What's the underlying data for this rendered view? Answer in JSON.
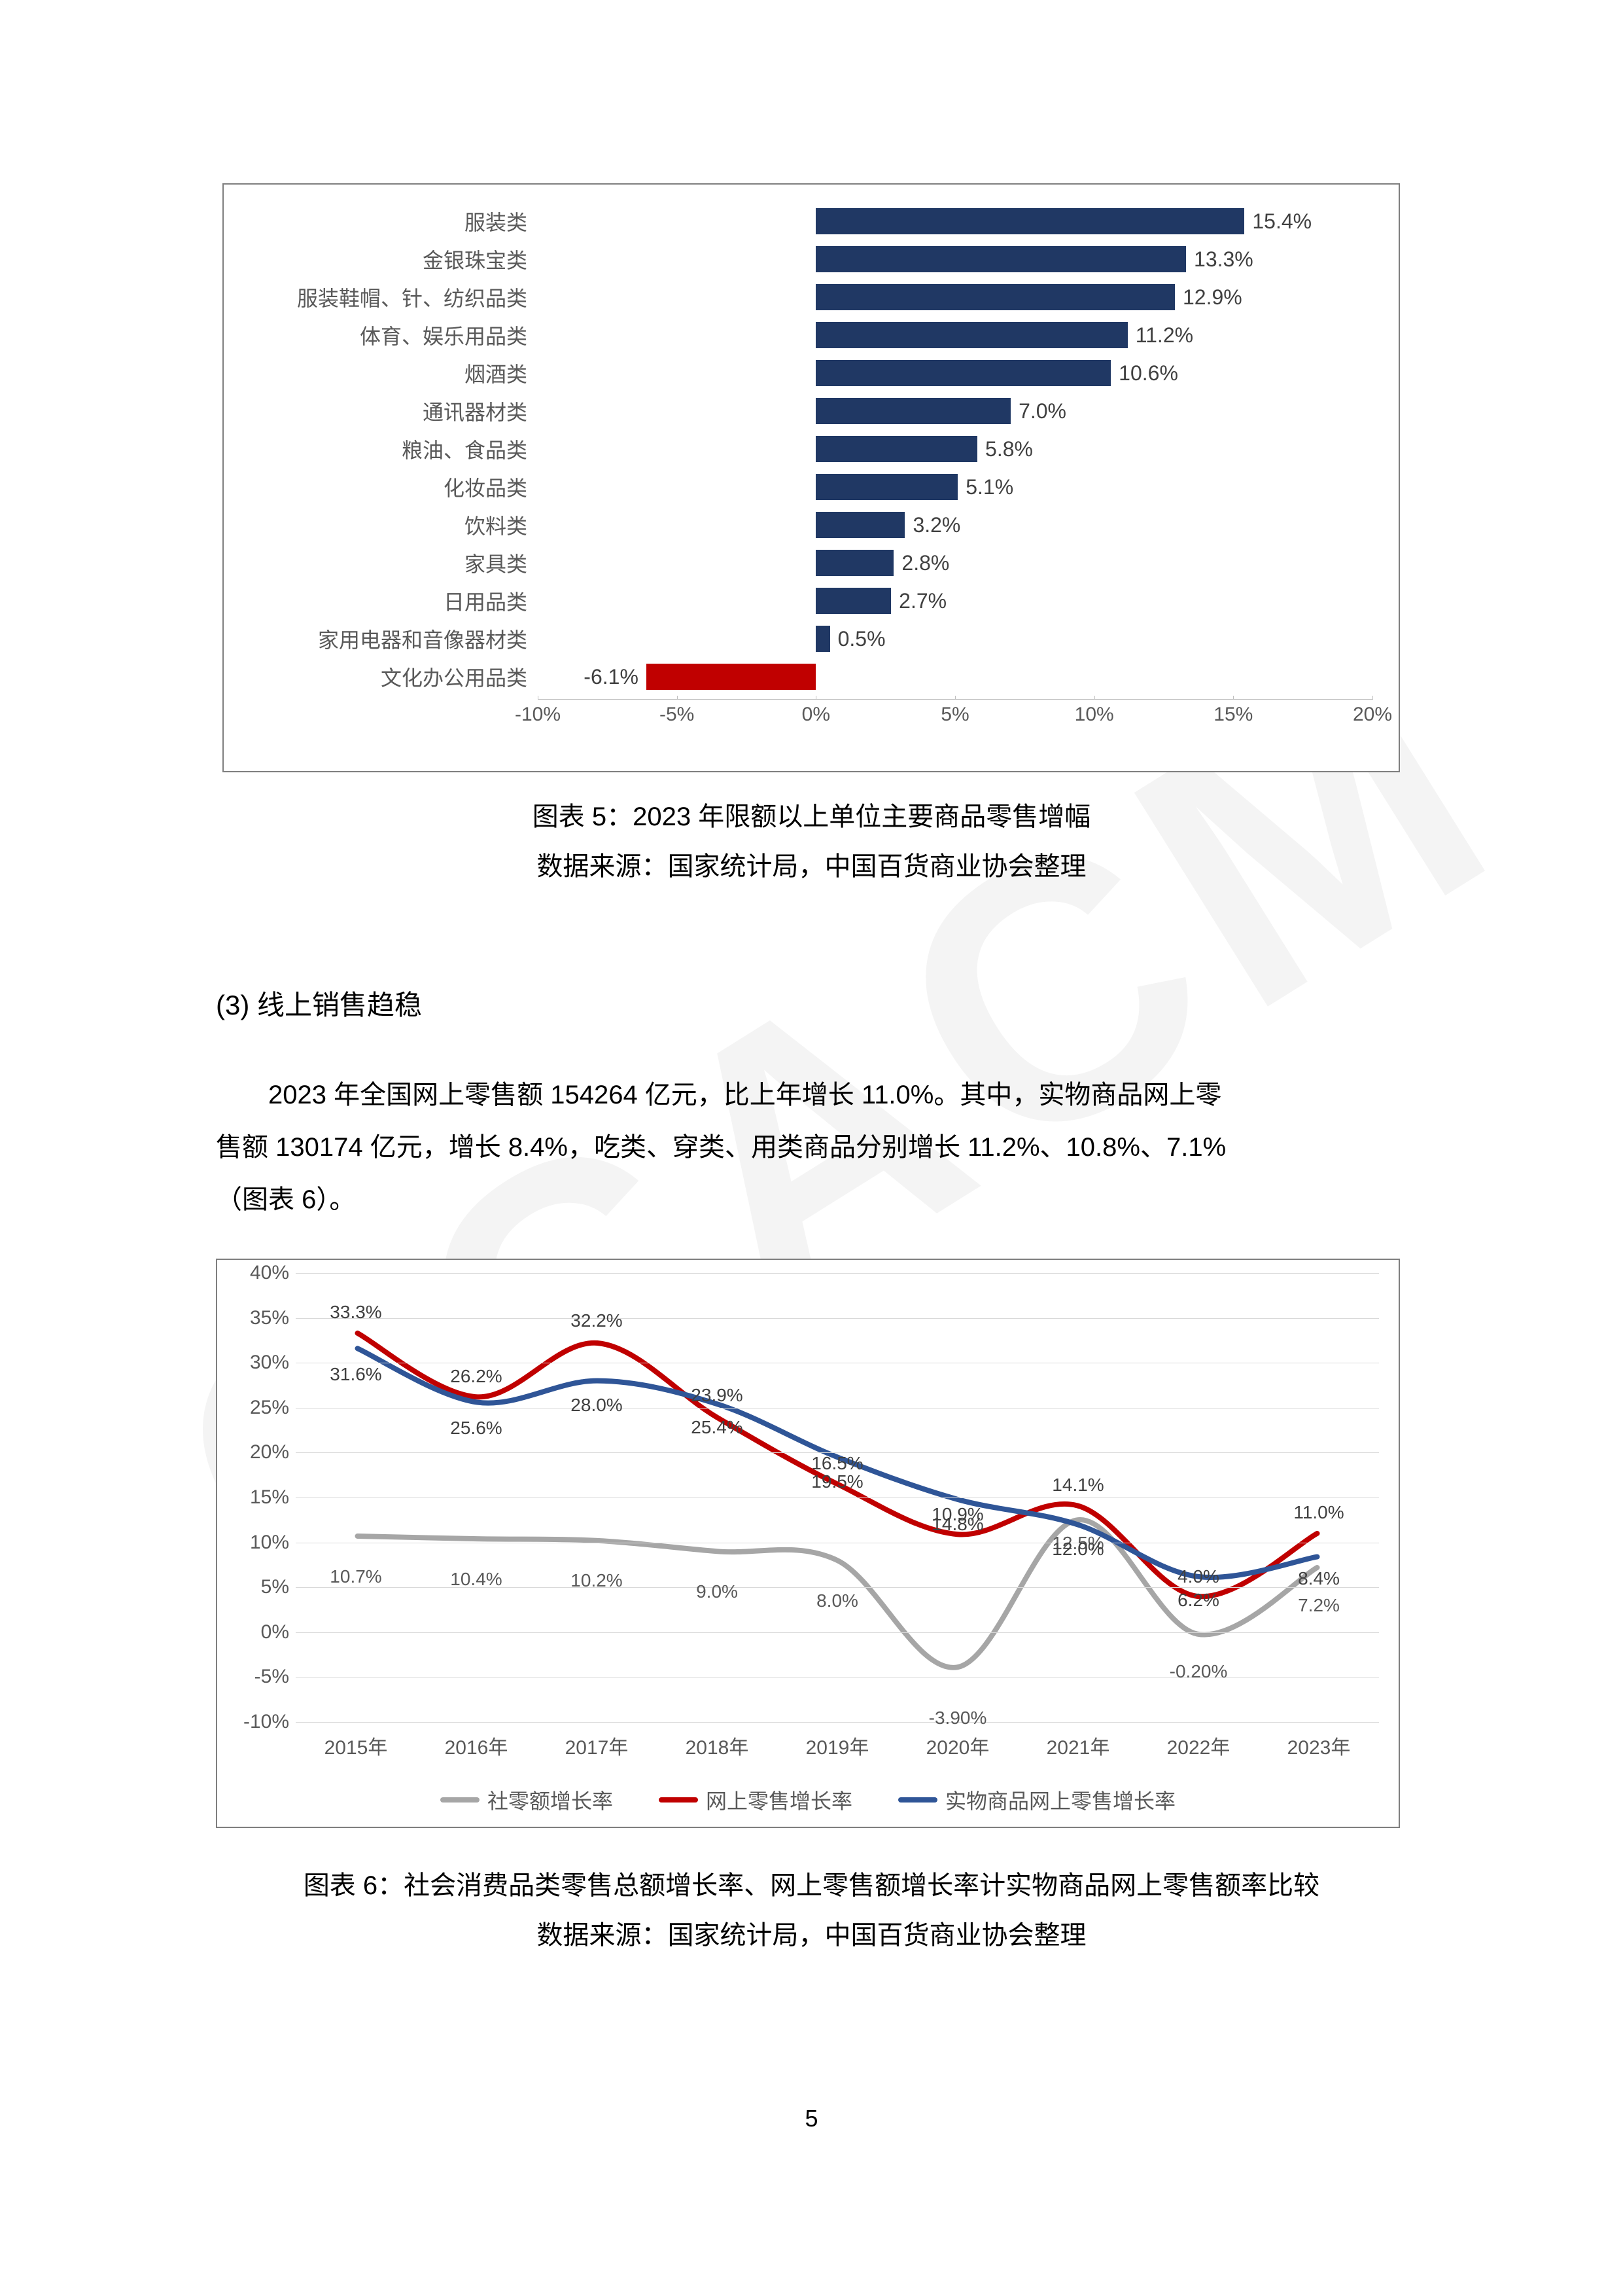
{
  "watermark": "CCACM",
  "bar_chart": {
    "type": "bar",
    "categories": [
      "服装类",
      "金银珠宝类",
      "服装鞋帽、针、纺织品类",
      "体育、娱乐用品类",
      "烟酒类",
      "通讯器材类",
      "粮油、食品类",
      "化妆品类",
      "饮料类",
      "家具类",
      "日用品类",
      "家用电器和音像器材类",
      "文化办公用品类"
    ],
    "values": [
      15.4,
      13.3,
      12.9,
      11.2,
      10.6,
      7.0,
      5.8,
      5.1,
      3.2,
      2.8,
      2.7,
      0.5,
      -6.1
    ],
    "value_labels": [
      "15.4%",
      "13.3%",
      "12.9%",
      "11.2%",
      "10.6%",
      "7.0%",
      "5.8%",
      "5.1%",
      "3.2%",
      "2.8%",
      "2.7%",
      "0.5%",
      "-6.1%"
    ],
    "positive_color": "#203864",
    "negative_color": "#c00000",
    "xlim": [
      -10,
      20
    ],
    "xticks": [
      -10,
      -5,
      0,
      5,
      10,
      15,
      20
    ],
    "xtick_labels": [
      "-10%",
      "-5%",
      "0%",
      "5%",
      "10%",
      "15%",
      "20%"
    ],
    "label_color": "#595959",
    "value_color": "#404040",
    "label_fontsize": 32,
    "border_color": "#7f7f7f",
    "background": "#ffffff"
  },
  "caption5_line1": "图表 5：2023 年限额以上单位主要商品零售增幅",
  "caption5_line2": "数据来源：国家统计局，中国百货商业协会整理",
  "section_heading": "(3)  线上销售趋稳",
  "paragraph_a": "2023 年全国网上零售额 154264 亿元，比上年增长 11.0%。其中，实物商品网上零",
  "paragraph_b": "售额 130174 亿元，增长 8.4%，吃类、穿类、用类商品分别增长 11.2%、10.8%、7.1%",
  "paragraph_c": "（图表 6）。",
  "line_chart": {
    "type": "line",
    "x_categories": [
      "2015年",
      "2016年",
      "2017年",
      "2018年",
      "2019年",
      "2020年",
      "2021年",
      "2022年",
      "2023年"
    ],
    "ylim": [
      -10,
      40
    ],
    "yticks": [
      -10,
      -5,
      0,
      5,
      10,
      15,
      20,
      25,
      30,
      35,
      40
    ],
    "ytick_labels": [
      "-10%",
      "-5%",
      "0%",
      "5%",
      "10%",
      "15%",
      "20%",
      "25%",
      "30%",
      "35%",
      "40%"
    ],
    "series": [
      {
        "name": "社零额增长率",
        "color": "#a6a6a6",
        "stroke_width": 8,
        "values": [
          10.7,
          10.4,
          10.2,
          9.0,
          8.0,
          -3.9,
          12.5,
          -0.2,
          7.2
        ],
        "labels": [
          "10.7%",
          "10.4%",
          "10.2%",
          "9.0%",
          "8.0%",
          "-3.90%",
          "12.5%",
          "-0.20%",
          "7.2%"
        ],
        "label_color": "#595959",
        "label_dy": [
          62,
          62,
          62,
          62,
          62,
          78,
          36,
          58,
          58
        ]
      },
      {
        "name": "网上零售增长率",
        "color": "#c00000",
        "stroke_width": 8,
        "values": [
          33.3,
          26.2,
          32.2,
          23.9,
          16.5,
          10.9,
          14.1,
          4.0,
          11.0
        ],
        "labels": [
          "33.3%",
          "26.2%",
          "32.2%",
          "23.9%",
          "16.5%",
          "10.9%",
          "14.1%",
          "4.0%",
          "11.0%"
        ],
        "label_color": "#404040",
        "label_dy": [
          -32,
          -32,
          -34,
          -34,
          -32,
          -30,
          -32,
          -30,
          -32
        ]
      },
      {
        "name": "实物商品网上零售增长率",
        "color": "#2f5597",
        "stroke_width": 8,
        "values": [
          31.6,
          25.6,
          28.0,
          25.4,
          19.5,
          14.8,
          12.0,
          6.2,
          8.4
        ],
        "labels": [
          "31.6%",
          "25.6%",
          "28.0%",
          "25.4%",
          "19.5%",
          "14.8%",
          "12.0%",
          "6.2%",
          "8.4%"
        ],
        "label_color": "#404040",
        "label_dy": [
          40,
          40,
          38,
          36,
          38,
          38,
          38,
          36,
          34
        ]
      }
    ],
    "grid_color": "#d9d9d9",
    "border_color": "#7f7f7f",
    "background": "#ffffff"
  },
  "caption6_line1": "图表 6：社会消费品类零售总额增长率、网上零售额增长率计实物商品网上零售额率比较",
  "caption6_line2": "数据来源：国家统计局，中国百货商业协会整理",
  "page_number": "5"
}
